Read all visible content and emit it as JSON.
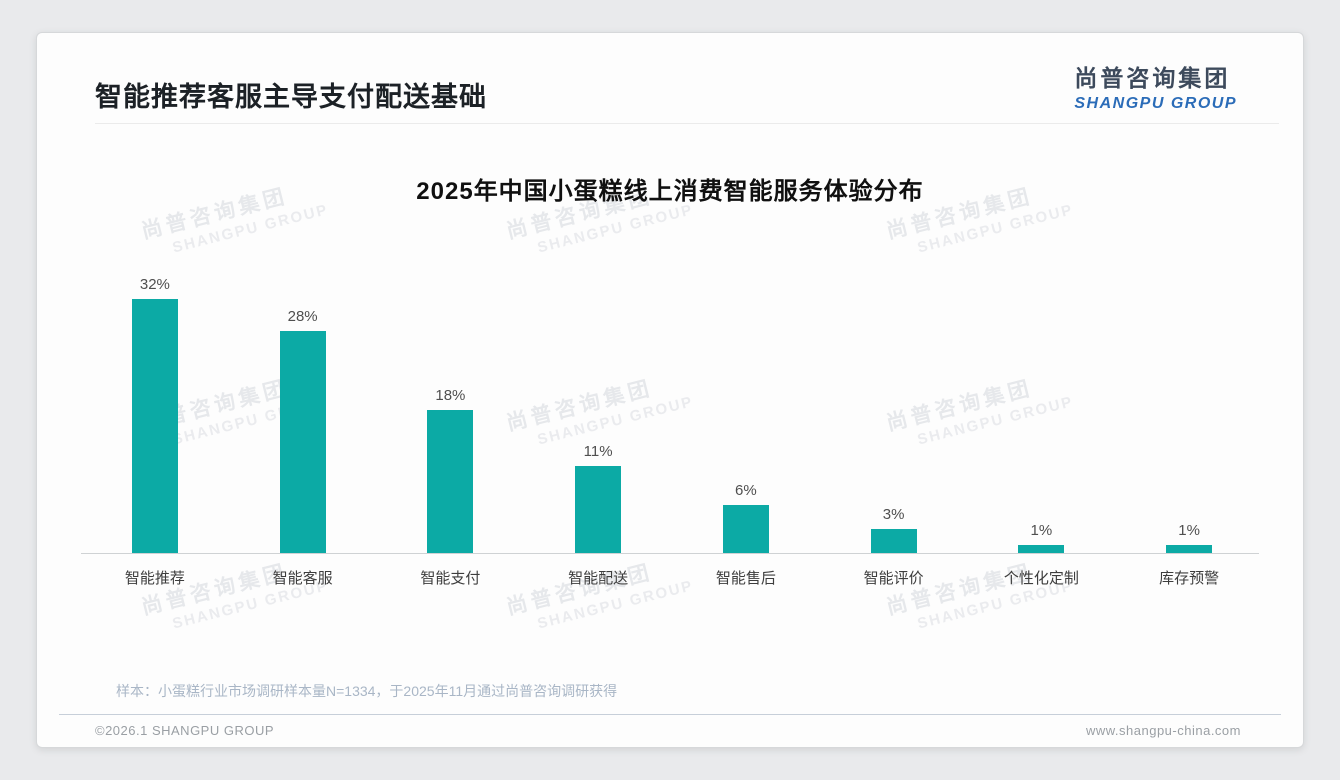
{
  "header": {
    "title": "智能推荐客服主导支付配送基础",
    "logo": {
      "name_cn": "尚普咨询集团",
      "name_en": "SHANGPU GROUP"
    }
  },
  "watermark": {
    "line_cn": "尚普咨询集团",
    "line_en": "SHANGPU GROUP"
  },
  "chart_data": {
    "type": "bar",
    "title": "2025年中国小蛋糕线上消费智能服务体验分布",
    "categories": [
      "智能推荐",
      "智能客服",
      "智能支付",
      "智能配送",
      "智能售后",
      "智能评价",
      "个性化定制",
      "库存预警"
    ],
    "values": [
      32,
      28,
      18,
      11,
      6,
      3,
      1,
      1
    ],
    "data_labels": [
      "32%",
      "28%",
      "18%",
      "11%",
      "6%",
      "3%",
      "1%",
      "1%"
    ],
    "unit": "%",
    "bar_color": "#0caaa5",
    "ylim": [
      0,
      32
    ],
    "grid": false,
    "legend": false,
    "xlabel": "",
    "ylabel": ""
  },
  "footnote": "样本：小蛋糕行业市场调研样本量N=1334，于2025年11月通过尚普咨询调研获得",
  "footer": {
    "copyright": "©2026.1 SHANGPU GROUP",
    "website": "www.shangpu-china.com"
  }
}
